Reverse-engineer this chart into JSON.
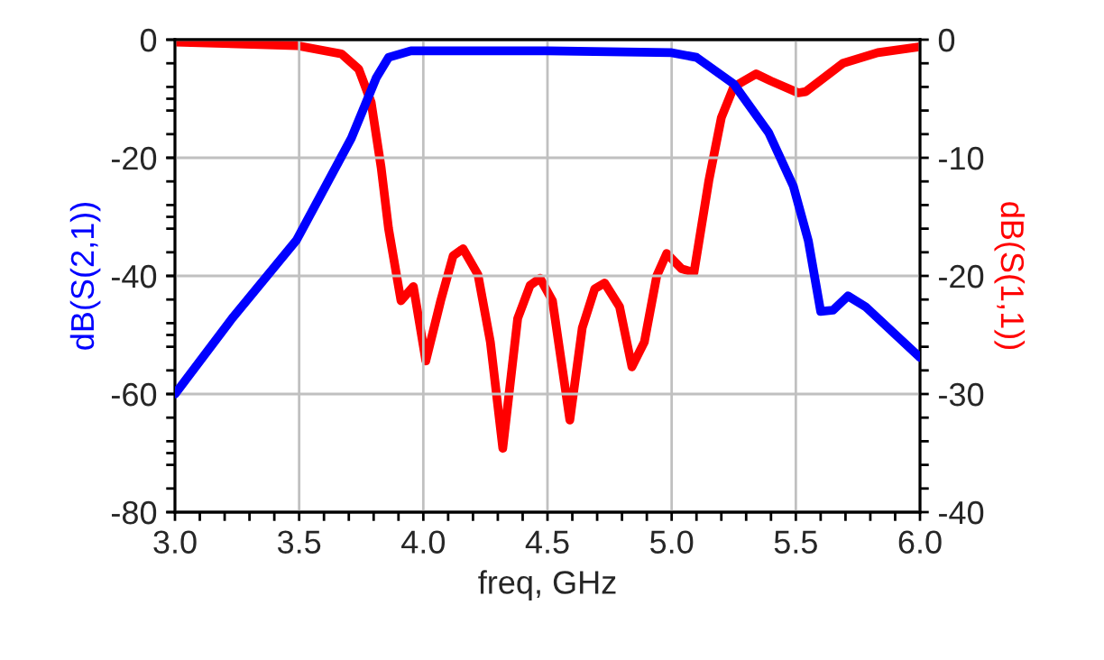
{
  "chart_data": {
    "type": "line",
    "xlabel": "freq, GHz",
    "ylabel": "dB(S(2,1))",
    "y2label": "dB(S(1,1))",
    "xlim": [
      3.0,
      6.0
    ],
    "ylim": [
      -80,
      0
    ],
    "y2lim": [
      -40,
      0
    ],
    "xticks": [
      {
        "value": 3.0,
        "label": "3.0"
      },
      {
        "value": 3.1,
        "label": null
      },
      {
        "value": 3.2,
        "label": null
      },
      {
        "value": 3.3,
        "label": null
      },
      {
        "value": 3.4,
        "label": null
      },
      {
        "value": 3.5,
        "label": "3.5"
      },
      {
        "value": 3.6,
        "label": null
      },
      {
        "value": 3.7,
        "label": null
      },
      {
        "value": 3.8,
        "label": null
      },
      {
        "value": 3.9,
        "label": null
      },
      {
        "value": 4.0,
        "label": "4.0"
      },
      {
        "value": 4.1,
        "label": null
      },
      {
        "value": 4.2,
        "label": null
      },
      {
        "value": 4.3,
        "label": null
      },
      {
        "value": 4.4,
        "label": null
      },
      {
        "value": 4.5,
        "label": "4.5"
      },
      {
        "value": 4.6,
        "label": null
      },
      {
        "value": 4.7,
        "label": null
      },
      {
        "value": 4.8,
        "label": null
      },
      {
        "value": 4.9,
        "label": null
      },
      {
        "value": 5.0,
        "label": "5.0"
      },
      {
        "value": 5.1,
        "label": null
      },
      {
        "value": 5.2,
        "label": null
      },
      {
        "value": 5.3,
        "label": null
      },
      {
        "value": 5.4,
        "label": null
      },
      {
        "value": 5.5,
        "label": "5.5"
      },
      {
        "value": 5.6,
        "label": null
      },
      {
        "value": 5.7,
        "label": null
      },
      {
        "value": 5.8,
        "label": null
      },
      {
        "value": 5.9,
        "label": null
      },
      {
        "value": 6.0,
        "label": "6.0"
      }
    ],
    "yticks": [
      -80,
      {
        "value": -70,
        "label": null
      },
      -60,
      {
        "value": -50,
        "label": null
      },
      -40,
      {
        "value": -30,
        "label": null
      },
      -20,
      {
        "value": -10,
        "label": null
      },
      0
    ],
    "y2ticks": [
      -40,
      {
        "value": -38,
        "label": null
      },
      {
        "value": -36,
        "label": null
      },
      {
        "value": -34,
        "label": null
      },
      {
        "value": -32,
        "label": null
      },
      -30,
      {
        "value": -28,
        "label": null
      },
      {
        "value": -26,
        "label": null
      },
      {
        "value": -24,
        "label": null
      },
      {
        "value": -22,
        "label": null
      },
      -20,
      {
        "value": -18,
        "label": null
      },
      {
        "value": -16,
        "label": null
      },
      {
        "value": -14,
        "label": null
      },
      {
        "value": -12,
        "label": null
      },
      -10,
      {
        "value": -8,
        "label": null
      },
      {
        "value": -6,
        "label": null
      },
      {
        "value": -4,
        "label": null
      },
      {
        "value": -2,
        "label": null
      },
      0
    ],
    "grid": true,
    "legend": false,
    "line_style": "solid",
    "marker": "none",
    "series": [
      {
        "color": "#0000ff",
        "x": [
          3.0,
          3.23,
          3.49,
          3.71,
          3.81,
          3.86,
          3.95,
          4.5,
          5.0,
          5.1,
          5.25,
          5.39,
          5.49,
          5.55,
          5.6,
          5.65,
          5.71,
          5.78,
          6.0
        ],
        "values": [
          -60,
          -47.2,
          -33.9,
          -16.7,
          -6.5,
          -3,
          -1.9,
          -1.9,
          -2.2,
          -3,
          -7.5,
          -15.7,
          -24.8,
          -34,
          -46,
          -45.8,
          -43.4,
          -45.2,
          -53.8
        ]
      },
      {
        "color": "#ff0000",
        "axis": "y2",
        "x": [
          3.0,
          3.49,
          3.67,
          3.74,
          3.79,
          3.83,
          3.86,
          3.91,
          3.96,
          4.01,
          4.07,
          4.12,
          4.16,
          4.22,
          4.27,
          4.32,
          4.38,
          4.43,
          4.47,
          4.52,
          4.59,
          4.64,
          4.69,
          4.73,
          4.79,
          4.84,
          4.89,
          4.94,
          4.98,
          5.04,
          5.09,
          5.15,
          5.2,
          5.25,
          5.29,
          5.34,
          5.4,
          5.51,
          5.54,
          5.69,
          5.83,
          6.0
        ],
        "values": [
          -0.2,
          -0.5,
          -1.2,
          -2.5,
          -5.3,
          -10.8,
          -16,
          -22.1,
          -20.9,
          -27.2,
          -22.1,
          -18.3,
          -17.7,
          -19.9,
          -25.6,
          -34.6,
          -23.6,
          -20.8,
          -20.2,
          -22.1,
          -32.2,
          -24.4,
          -21.1,
          -20.6,
          -22.6,
          -27.7,
          -25.6,
          -20,
          -18.1,
          -19.4,
          -19.7,
          -11.9,
          -6.6,
          -4,
          -3.5,
          -2.9,
          -3.5,
          -4.5,
          -4.4,
          -2,
          -1.1,
          -0.6
        ]
      }
    ]
  }
}
